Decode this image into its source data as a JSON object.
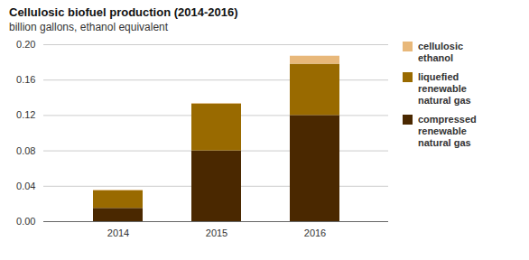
{
  "chart_data": {
    "type": "bar",
    "stacked": true,
    "title": "Cellulosic biofuel production (2014-2016)",
    "subtitle": "billion gallons, ethanol equivalent",
    "categories": [
      "2014",
      "2015",
      "2016"
    ],
    "series": [
      {
        "name": "compressed\nrenewable\nnatural gas",
        "color": "#4a2800",
        "values": [
          0.015,
          0.08,
          0.12
        ]
      },
      {
        "name": "liquefied\nrenewable\nnatural gas",
        "color": "#996a00",
        "values": [
          0.02,
          0.053,
          0.058
        ]
      },
      {
        "name": "cellulosic\nethanol",
        "color": "#e8b87a",
        "values": [
          0.0005,
          0.0005,
          0.009
        ]
      }
    ],
    "ylim": [
      0,
      0.2
    ],
    "yticks": [
      {
        "value": 0,
        "label": "0.00"
      },
      0.04,
      0.08,
      0.12,
      0.16,
      {
        "value": 0.2,
        "label": "0.20"
      }
    ],
    "grid": true,
    "legend": "right"
  }
}
